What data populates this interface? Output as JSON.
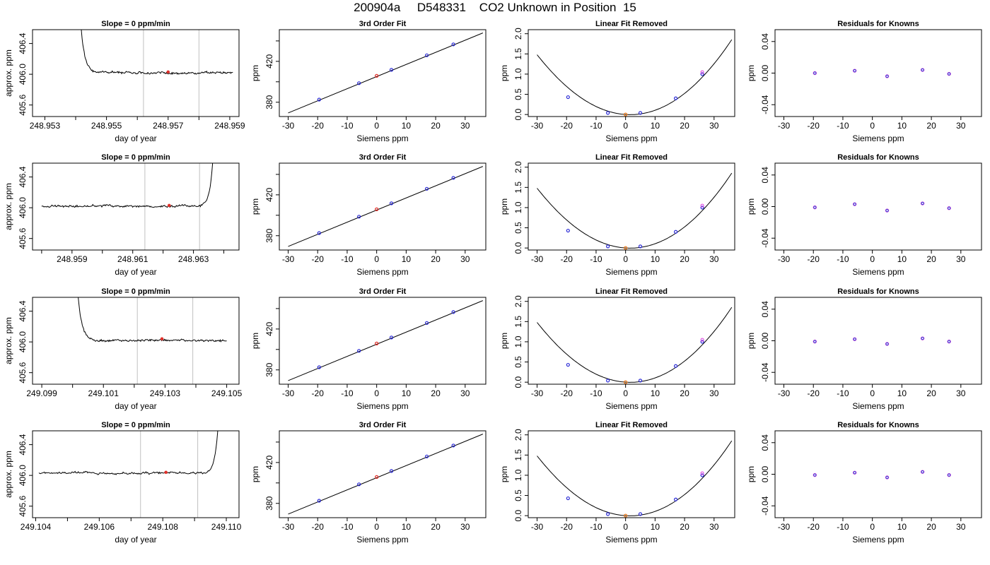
{
  "title": "200904a     D548331    CO2 Unknown in Position  15",
  "chart_data": [
    {
      "type": "line",
      "title": "Slope =  0  ppm/min",
      "xlabel": "day of year",
      "ylabel": "approx. ppm",
      "xlim": [
        248.9526,
        248.9593
      ],
      "ylim": [
        405.45,
        406.58
      ],
      "xticks": [
        248.953,
        248.954,
        248.955,
        248.956,
        248.957,
        248.958,
        248.959
      ],
      "xticklabels": [
        "248.953",
        "",
        "248.955",
        "",
        "248.957",
        "",
        "248.959"
      ],
      "yticks": [
        405.6,
        406.0,
        406.4
      ],
      "yticklabels": [
        "405.6",
        "406.0",
        "406.4"
      ],
      "vlines": [
        248.9562,
        248.958
      ],
      "spike": "start",
      "x_start": 248.9541,
      "x_end": 248.9591,
      "baseline": 406.02,
      "marker": {
        "x": 248.957,
        "y": 406.03
      }
    },
    {
      "type": "scatter",
      "title": "3rd Order Fit",
      "xlabel": "Siemens ppm",
      "ylabel": "ppm",
      "xlim": [
        -33,
        37
      ],
      "ylim": [
        366,
        451
      ],
      "xticks": [
        -30,
        -20,
        -10,
        0,
        10,
        20,
        30
      ],
      "xticklabels": [
        "-30",
        "-20",
        "-10",
        "0",
        "10",
        "20",
        "30"
      ],
      "yticks": [
        380,
        400,
        420,
        440
      ],
      "yticklabels": [
        "380",
        "",
        "420",
        ""
      ],
      "fit_line": {
        "x": [
          -30,
          36
        ],
        "y": [
          369.5,
          447.8
        ]
      },
      "known_points": [
        {
          "x": -19.5,
          "y": 382.6
        },
        {
          "x": -6,
          "y": 398.6
        },
        {
          "x": 5,
          "y": 411.7
        },
        {
          "x": 17,
          "y": 425.9
        },
        {
          "x": 26,
          "y": 436.6
        }
      ],
      "unknown_point": {
        "x": 0,
        "y": 405.8
      }
    },
    {
      "type": "scatter",
      "title": "Linear Fit Removed",
      "xlabel": "Siemens ppm",
      "ylabel": "ppm",
      "xlim": [
        -33,
        37
      ],
      "ylim": [
        -0.05,
        2.1
      ],
      "xticks": [
        -30,
        -20,
        -10,
        0,
        10,
        20,
        30
      ],
      "xticklabels": [
        "-30",
        "-20",
        "-10",
        "0",
        "10",
        "20",
        "30"
      ],
      "yticks": [
        0,
        0.5,
        1,
        1.5,
        2
      ],
      "yticklabels": [
        "0.0",
        "0.5",
        "1.0",
        "1.5",
        "2.0"
      ],
      "curve": {
        "x_min": -30,
        "x_max": 36,
        "coeffs": [
          0,
          -0.0048,
          0.00152,
          1.2e-06
        ]
      },
      "known_points": [
        {
          "x": -19.5,
          "y": 0.43
        },
        {
          "x": -6,
          "y": 0.04
        },
        {
          "x": 5,
          "y": 0.04
        },
        {
          "x": 17,
          "y": 0.4
        },
        {
          "x": 26,
          "y": 1.0
        }
      ],
      "magenta_point": {
        "x": 26,
        "y": 1.05
      },
      "unknown_point": {
        "x": 0,
        "y": 0.0
      }
    },
    {
      "type": "scatter",
      "title": "Residuals for Knowns",
      "xlabel": "Siemens ppm",
      "ylabel": "ppm",
      "xlim": [
        -33,
        37
      ],
      "ylim": [
        -0.055,
        0.055
      ],
      "xticks": [
        -30,
        -20,
        -10,
        0,
        10,
        20,
        30
      ],
      "xticklabels": [
        "-30",
        "-20",
        "-10",
        "0",
        "10",
        "20",
        "30"
      ],
      "yticks": [
        -0.04,
        0,
        0.04
      ],
      "yticklabels": [
        "-0.04",
        "0.00",
        "0.04"
      ],
      "points": [
        {
          "x": -19.5,
          "y": 0.0
        },
        {
          "x": -6,
          "y": 0.003
        },
        {
          "x": 5,
          "y": -0.004
        },
        {
          "x": 17,
          "y": 0.004
        },
        {
          "x": 26,
          "y": -0.001
        }
      ]
    },
    {
      "type": "line",
      "title": "Slope =  0  ppm/min",
      "xlabel": "day of year",
      "ylabel": "approx. ppm",
      "xlim": [
        248.9577,
        248.9645
      ],
      "ylim": [
        405.45,
        406.58
      ],
      "xticks": [
        248.958,
        248.959,
        248.96,
        248.961,
        248.962,
        248.963,
        248.964
      ],
      "xticklabels": [
        "",
        "248.959",
        "",
        "248.961",
        "",
        "248.963",
        ""
      ],
      "yticks": [
        405.6,
        406.0,
        406.4
      ],
      "yticklabels": [
        "405.6",
        "406.0",
        "406.4"
      ],
      "vlines": [
        248.9614,
        248.9632
      ],
      "spike": "end",
      "x_start": 248.958,
      "x_end": 248.9637,
      "baseline": 406.02,
      "marker": {
        "x": 248.9622,
        "y": 406.03
      }
    },
    {
      "type": "scatter",
      "title": "3rd Order Fit",
      "xlabel": "Siemens ppm",
      "ylabel": "ppm",
      "xlim": [
        -33,
        37
      ],
      "ylim": [
        366,
        451
      ],
      "xticks": [
        -30,
        -20,
        -10,
        0,
        10,
        20,
        30
      ],
      "xticklabels": [
        "-30",
        "-20",
        "-10",
        "0",
        "10",
        "20",
        "30"
      ],
      "yticks": [
        380,
        400,
        420,
        440
      ],
      "yticklabels": [
        "380",
        "",
        "420",
        ""
      ],
      "fit_line": {
        "x": [
          -30,
          36
        ],
        "y": [
          369.5,
          447.8
        ]
      },
      "known_points": [
        {
          "x": -19.5,
          "y": 382.6
        },
        {
          "x": -6,
          "y": 398.6
        },
        {
          "x": 5,
          "y": 411.7
        },
        {
          "x": 17,
          "y": 425.9
        },
        {
          "x": 26,
          "y": 436.6
        }
      ],
      "unknown_point": {
        "x": 0,
        "y": 405.8
      }
    },
    {
      "type": "scatter",
      "title": "Linear Fit Removed",
      "xlabel": "Siemens ppm",
      "ylabel": "ppm",
      "xlim": [
        -33,
        37
      ],
      "ylim": [
        -0.05,
        2.1
      ],
      "xticks": [
        -30,
        -20,
        -10,
        0,
        10,
        20,
        30
      ],
      "xticklabels": [
        "-30",
        "-20",
        "-10",
        "0",
        "10",
        "20",
        "30"
      ],
      "yticks": [
        0,
        0.5,
        1,
        1.5,
        2
      ],
      "yticklabels": [
        "0.0",
        "0.5",
        "1.0",
        "1.5",
        "2.0"
      ],
      "curve": {
        "x_min": -30,
        "x_max": 36,
        "coeffs": [
          0,
          -0.0048,
          0.00152,
          1.2e-06
        ]
      },
      "known_points": [
        {
          "x": -19.5,
          "y": 0.43
        },
        {
          "x": -6,
          "y": 0.04
        },
        {
          "x": 5,
          "y": 0.04
        },
        {
          "x": 17,
          "y": 0.4
        },
        {
          "x": 26,
          "y": 1.0
        }
      ],
      "magenta_point": {
        "x": 26,
        "y": 1.05
      },
      "unknown_point": {
        "x": 0,
        "y": 0.0
      }
    },
    {
      "type": "scatter",
      "title": "Residuals for Knowns",
      "xlabel": "Siemens ppm",
      "ylabel": "ppm",
      "xlim": [
        -33,
        37
      ],
      "ylim": [
        -0.055,
        0.055
      ],
      "xticks": [
        -30,
        -20,
        -10,
        0,
        10,
        20,
        30
      ],
      "xticklabels": [
        "-30",
        "-20",
        "-10",
        "0",
        "10",
        "20",
        "30"
      ],
      "yticks": [
        -0.04,
        0,
        0.04
      ],
      "yticklabels": [
        "-0.04",
        "0.00",
        "0.04"
      ],
      "points": [
        {
          "x": -19.5,
          "y": -0.001
        },
        {
          "x": -6,
          "y": 0.003
        },
        {
          "x": 5,
          "y": -0.005
        },
        {
          "x": 17,
          "y": 0.004
        },
        {
          "x": 26,
          "y": -0.002
        }
      ]
    },
    {
      "type": "line",
      "title": "Slope =  0  ppm/min",
      "xlabel": "day of year",
      "ylabel": "approx. ppm",
      "xlim": [
        249.0987,
        249.1054
      ],
      "ylim": [
        405.45,
        406.58
      ],
      "xticks": [
        249.099,
        249.1,
        249.101,
        249.102,
        249.103,
        249.104,
        249.105
      ],
      "xticklabels": [
        "249.099",
        "",
        "249.101",
        "",
        "249.103",
        "",
        "249.105"
      ],
      "yticks": [
        405.6,
        406.0,
        406.4
      ],
      "yticklabels": [
        "405.6",
        "406.0",
        "406.4"
      ],
      "vlines": [
        249.1021,
        249.1039
      ],
      "spike": "start",
      "x_start": 249.1001,
      "x_end": 249.105,
      "baseline": 406.02,
      "marker": {
        "x": 249.1029,
        "y": 406.04
      }
    },
    {
      "type": "scatter",
      "title": "3rd Order Fit",
      "xlabel": "Siemens ppm",
      "ylabel": "ppm",
      "xlim": [
        -33,
        37
      ],
      "ylim": [
        366,
        451
      ],
      "xticks": [
        -30,
        -20,
        -10,
        0,
        10,
        20,
        30
      ],
      "xticklabels": [
        "-30",
        "-20",
        "-10",
        "0",
        "10",
        "20",
        "30"
      ],
      "yticks": [
        380,
        400,
        420,
        440
      ],
      "yticklabels": [
        "380",
        "",
        "420",
        ""
      ],
      "fit_line": {
        "x": [
          -30,
          36
        ],
        "y": [
          369.5,
          447.8
        ]
      },
      "known_points": [
        {
          "x": -19.5,
          "y": 382.6
        },
        {
          "x": -6,
          "y": 398.6
        },
        {
          "x": 5,
          "y": 411.7
        },
        {
          "x": 17,
          "y": 425.9
        },
        {
          "x": 26,
          "y": 436.6
        }
      ],
      "unknown_point": {
        "x": 0,
        "y": 405.8
      }
    },
    {
      "type": "scatter",
      "title": "Linear Fit Removed",
      "xlabel": "Siemens ppm",
      "ylabel": "ppm",
      "xlim": [
        -33,
        37
      ],
      "ylim": [
        -0.05,
        2.1
      ],
      "xticks": [
        -30,
        -20,
        -10,
        0,
        10,
        20,
        30
      ],
      "xticklabels": [
        "-30",
        "-20",
        "-10",
        "0",
        "10",
        "20",
        "30"
      ],
      "yticks": [
        0,
        0.5,
        1,
        1.5,
        2
      ],
      "yticklabels": [
        "0.0",
        "0.5",
        "1.0",
        "1.5",
        "2.0"
      ],
      "curve": {
        "x_min": -30,
        "x_max": 36,
        "coeffs": [
          0,
          -0.0048,
          0.00152,
          1.2e-06
        ]
      },
      "known_points": [
        {
          "x": -19.5,
          "y": 0.43
        },
        {
          "x": -6,
          "y": 0.04
        },
        {
          "x": 5,
          "y": 0.04
        },
        {
          "x": 17,
          "y": 0.4
        },
        {
          "x": 26,
          "y": 1.0
        }
      ],
      "magenta_point": {
        "x": 26,
        "y": 1.05
      },
      "unknown_point": {
        "x": 0,
        "y": 0.0
      }
    },
    {
      "type": "scatter",
      "title": "Residuals for Knowns",
      "xlabel": "Siemens ppm",
      "ylabel": "ppm",
      "xlim": [
        -33,
        37
      ],
      "ylim": [
        -0.055,
        0.055
      ],
      "xticks": [
        -30,
        -20,
        -10,
        0,
        10,
        20,
        30
      ],
      "xticklabels": [
        "-30",
        "-20",
        "-10",
        "0",
        "10",
        "20",
        "30"
      ],
      "yticks": [
        -0.04,
        0,
        0.04
      ],
      "yticklabels": [
        "-0.04",
        "0.00",
        "0.04"
      ],
      "points": [
        {
          "x": -19.5,
          "y": -0.001
        },
        {
          "x": -6,
          "y": 0.002
        },
        {
          "x": 5,
          "y": -0.004
        },
        {
          "x": 17,
          "y": 0.003
        },
        {
          "x": 26,
          "y": -0.001
        }
      ]
    },
    {
      "type": "line",
      "title": "Slope =  0  ppm/min",
      "xlabel": "day of year",
      "ylabel": "approx. ppm",
      "xlim": [
        249.1039,
        249.1104
      ],
      "ylim": [
        405.45,
        406.58
      ],
      "xticks": [
        249.104,
        249.105,
        249.106,
        249.107,
        249.108,
        249.109,
        249.11
      ],
      "xticklabels": [
        "249.104",
        "",
        "249.106",
        "",
        "249.108",
        "",
        "249.110"
      ],
      "yticks": [
        405.6,
        406.0,
        406.4
      ],
      "yticklabels": [
        "405.6",
        "406.0",
        "406.4"
      ],
      "vlines": [
        249.1073,
        249.1091
      ],
      "spike": "end",
      "x_start": 249.1041,
      "x_end": 249.1098,
      "baseline": 406.03,
      "marker": {
        "x": 249.1081,
        "y": 406.04
      }
    },
    {
      "type": "scatter",
      "title": "3rd Order Fit",
      "xlabel": "Siemens ppm",
      "ylabel": "ppm",
      "xlim": [
        -33,
        37
      ],
      "ylim": [
        366,
        451
      ],
      "xticks": [
        -30,
        -20,
        -10,
        0,
        10,
        20,
        30
      ],
      "xticklabels": [
        "-30",
        "-20",
        "-10",
        "0",
        "10",
        "20",
        "30"
      ],
      "yticks": [
        380,
        400,
        420,
        440
      ],
      "yticklabels": [
        "380",
        "",
        "420",
        ""
      ],
      "fit_line": {
        "x": [
          -30,
          36
        ],
        "y": [
          369.5,
          447.8
        ]
      },
      "known_points": [
        {
          "x": -19.5,
          "y": 382.6
        },
        {
          "x": -6,
          "y": 398.6
        },
        {
          "x": 5,
          "y": 411.7
        },
        {
          "x": 17,
          "y": 425.9
        },
        {
          "x": 26,
          "y": 436.6
        }
      ],
      "unknown_point": {
        "x": 0,
        "y": 405.8
      }
    },
    {
      "type": "scatter",
      "title": "Linear Fit Removed",
      "xlabel": "Siemens ppm",
      "ylabel": "ppm",
      "xlim": [
        -33,
        37
      ],
      "ylim": [
        -0.05,
        2.1
      ],
      "xticks": [
        -30,
        -20,
        -10,
        0,
        10,
        20,
        30
      ],
      "xticklabels": [
        "-30",
        "-20",
        "-10",
        "0",
        "10",
        "20",
        "30"
      ],
      "yticks": [
        0,
        0.5,
        1,
        1.5,
        2
      ],
      "yticklabels": [
        "0.0",
        "0.5",
        "1.0",
        "1.5",
        "2.0"
      ],
      "curve": {
        "x_min": -30,
        "x_max": 36,
        "coeffs": [
          0,
          -0.0048,
          0.00152,
          1.2e-06
        ]
      },
      "known_points": [
        {
          "x": -19.5,
          "y": 0.43
        },
        {
          "x": -6,
          "y": 0.04
        },
        {
          "x": 5,
          "y": 0.04
        },
        {
          "x": 17,
          "y": 0.4
        },
        {
          "x": 26,
          "y": 1.0
        }
      ],
      "magenta_point": {
        "x": 26,
        "y": 1.05
      },
      "unknown_point": {
        "x": 0,
        "y": 0.0
      }
    },
    {
      "type": "scatter",
      "title": "Residuals for Knowns",
      "xlabel": "Siemens ppm",
      "ylabel": "ppm",
      "xlim": [
        -33,
        37
      ],
      "ylim": [
        -0.055,
        0.055
      ],
      "xticks": [
        -30,
        -20,
        -10,
        0,
        10,
        20,
        30
      ],
      "xticklabels": [
        "-30",
        "-20",
        "-10",
        "0",
        "10",
        "20",
        "30"
      ],
      "yticks": [
        -0.04,
        0,
        0.04
      ],
      "yticklabels": [
        "-0.04",
        "0.00",
        "0.04"
      ],
      "points": [
        {
          "x": -19.5,
          "y": -0.001
        },
        {
          "x": -6,
          "y": 0.002
        },
        {
          "x": 5,
          "y": -0.004
        },
        {
          "x": 17,
          "y": 0.003
        },
        {
          "x": 26,
          "y": -0.001
        }
      ]
    }
  ]
}
